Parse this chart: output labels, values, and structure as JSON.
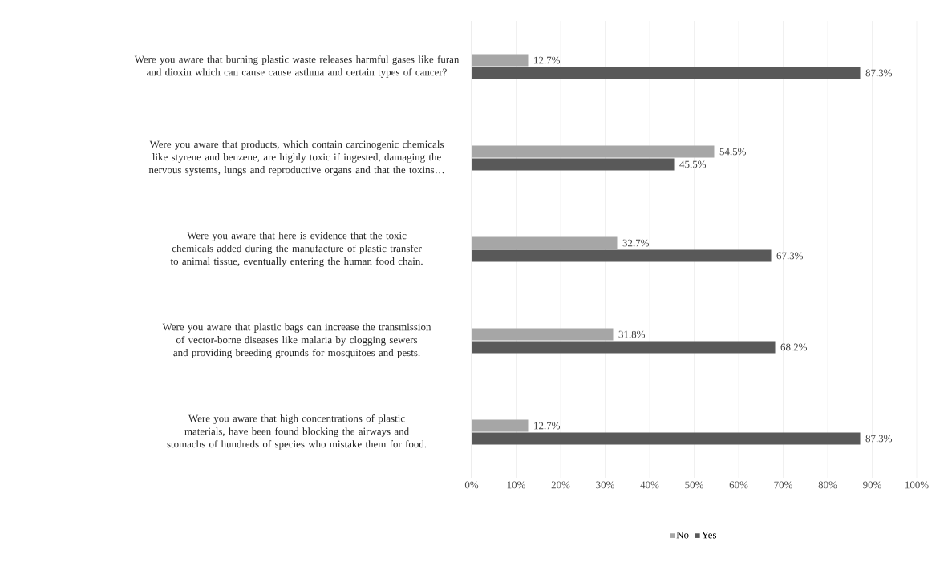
{
  "chart_data": {
    "type": "bar",
    "orientation": "horizontal",
    "categories": [
      "Were you aware that burning plastic waste releases harmful gases like furan and dioxin which can cause cause asthma and certain types of cancer?",
      "Were you aware that products, which contain carcinogenic chemicals like styrene and benzene, are highly toxic if ingested, damaging the nervous systems, lungs and reproductive organs and that the toxins…",
      "Were you aware that here is evidence that the toxic chemicals added during the manufacture of plastic transfer to animal tissue, eventually entering the human food chain.",
      "Were you aware that plastic bags can increase the transmission of vector-borne diseases like malaria by clogging sewers and providing breeding grounds for mosquitoes and pests.",
      "Were you aware that high concentrations of plastic materials, have been found blocking the airways and stomachs of hundreds of species who mistake them for food."
    ],
    "series": [
      {
        "name": "No",
        "color": "#a6a6a6",
        "values": [
          12.7,
          54.5,
          32.7,
          31.8,
          12.7
        ],
        "value_labels": [
          "12.7%",
          "54.5%",
          "32.7%",
          "31.8%",
          "12.7%"
        ]
      },
      {
        "name": "Yes",
        "color": "#595959",
        "values": [
          87.3,
          45.5,
          67.3,
          68.2,
          87.3
        ],
        "value_labels": [
          "87.3%",
          "45.5%",
          "67.3%",
          "68.2%",
          "87.3%"
        ]
      }
    ],
    "xlim": [
      0,
      100
    ],
    "xticks": [
      {
        "value": 0,
        "label": "0%"
      },
      {
        "value": 10,
        "label": "10%"
      },
      {
        "value": 20,
        "label": "20%"
      },
      {
        "value": 30,
        "label": "30%"
      },
      {
        "value": 40,
        "label": "40%"
      },
      {
        "value": 50,
        "label": "50%"
      },
      {
        "value": 60,
        "label": "60%"
      },
      {
        "value": 70,
        "label": "70%"
      },
      {
        "value": 80,
        "label": "80%"
      },
      {
        "value": 90,
        "label": "90%"
      },
      {
        "value": 100,
        "label": "100%"
      }
    ],
    "grid": "x",
    "legend": "bottom"
  }
}
